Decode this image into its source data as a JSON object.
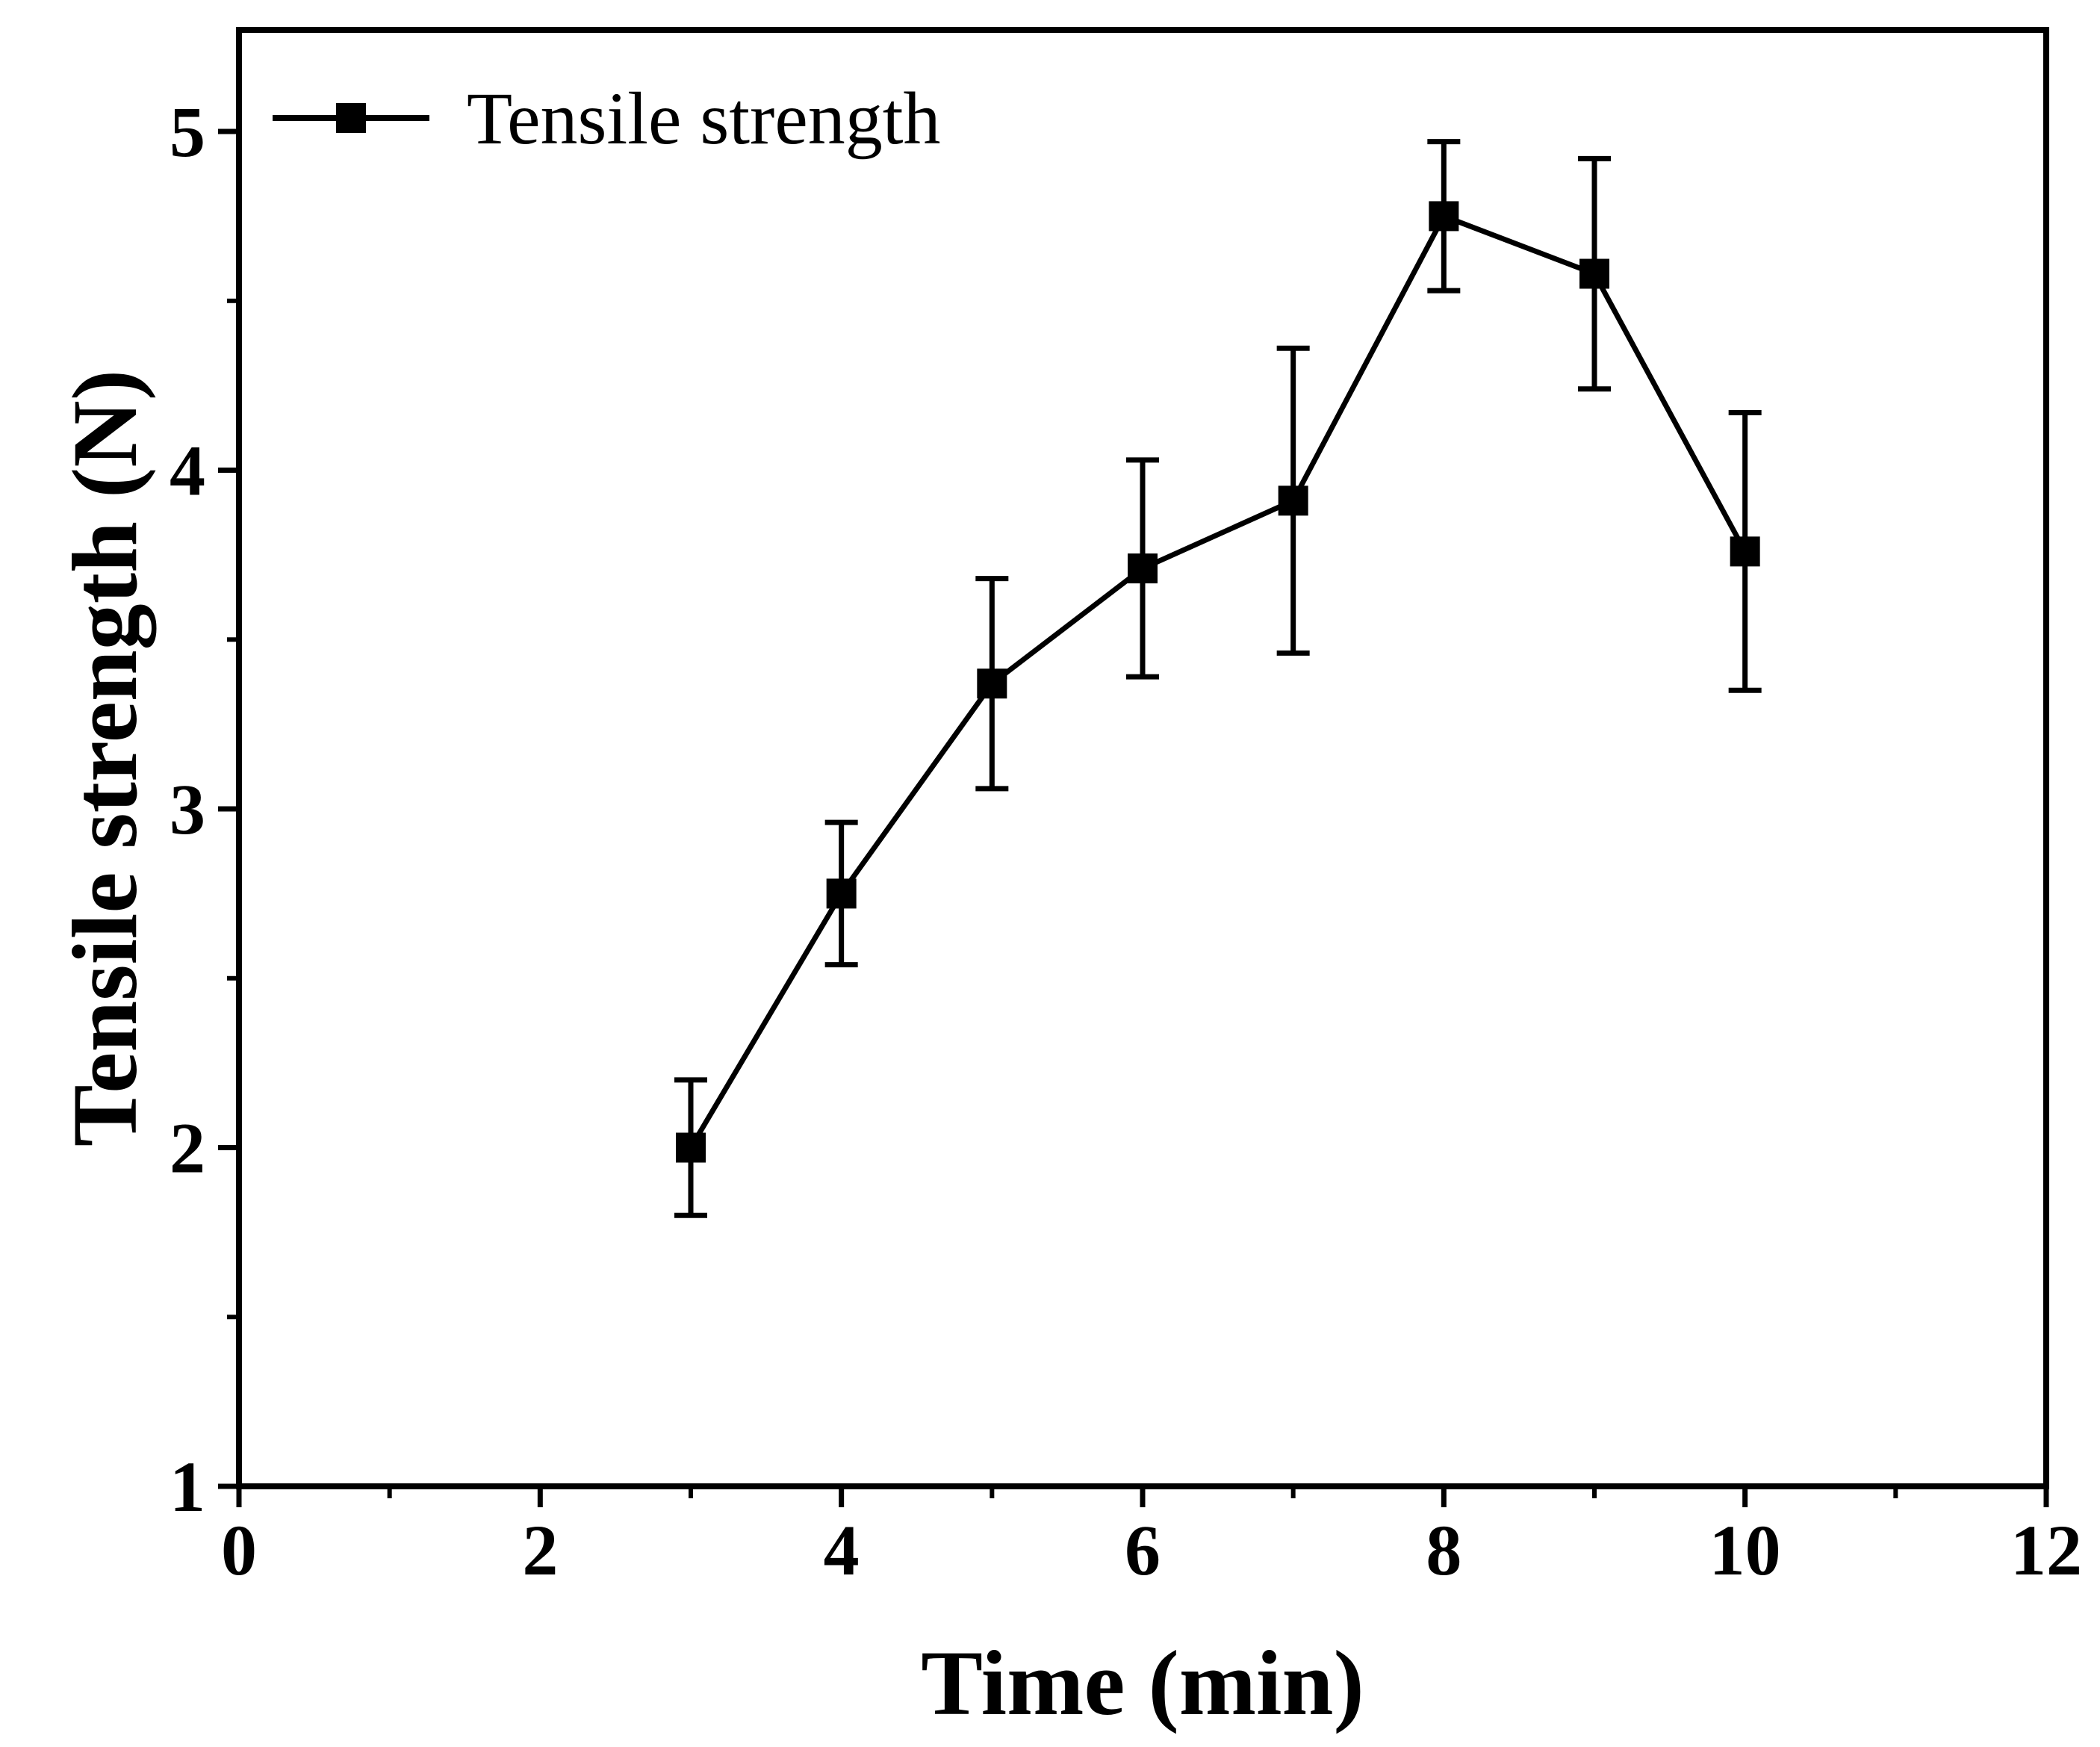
{
  "chart_data": {
    "type": "line",
    "title": "",
    "xlabel": "Time (min)",
    "ylabel": "Tensile strength (N)",
    "xlim": [
      0,
      12
    ],
    "ylim": [
      1,
      5.3
    ],
    "x_ticks": [
      0,
      2,
      4,
      6,
      8,
      10,
      12
    ],
    "y_ticks": [
      1,
      2,
      3,
      4,
      5
    ],
    "x_minor_ticks": [
      1,
      3,
      5,
      7,
      9,
      11
    ],
    "y_minor_ticks": [
      1.5,
      2.5,
      3.5,
      4.5
    ],
    "grid": false,
    "legend_position": "top-left",
    "series": [
      {
        "name": "Tensile strength",
        "marker": "square",
        "color": "#000000",
        "x": [
          3,
          4,
          5,
          6,
          7,
          8,
          9,
          10
        ],
        "y": [
          2.0,
          2.75,
          3.37,
          3.71,
          3.91,
          4.75,
          4.58,
          3.76
        ],
        "error": [
          0.2,
          0.21,
          0.31,
          0.32,
          0.45,
          0.22,
          0.34,
          0.41
        ]
      }
    ]
  }
}
